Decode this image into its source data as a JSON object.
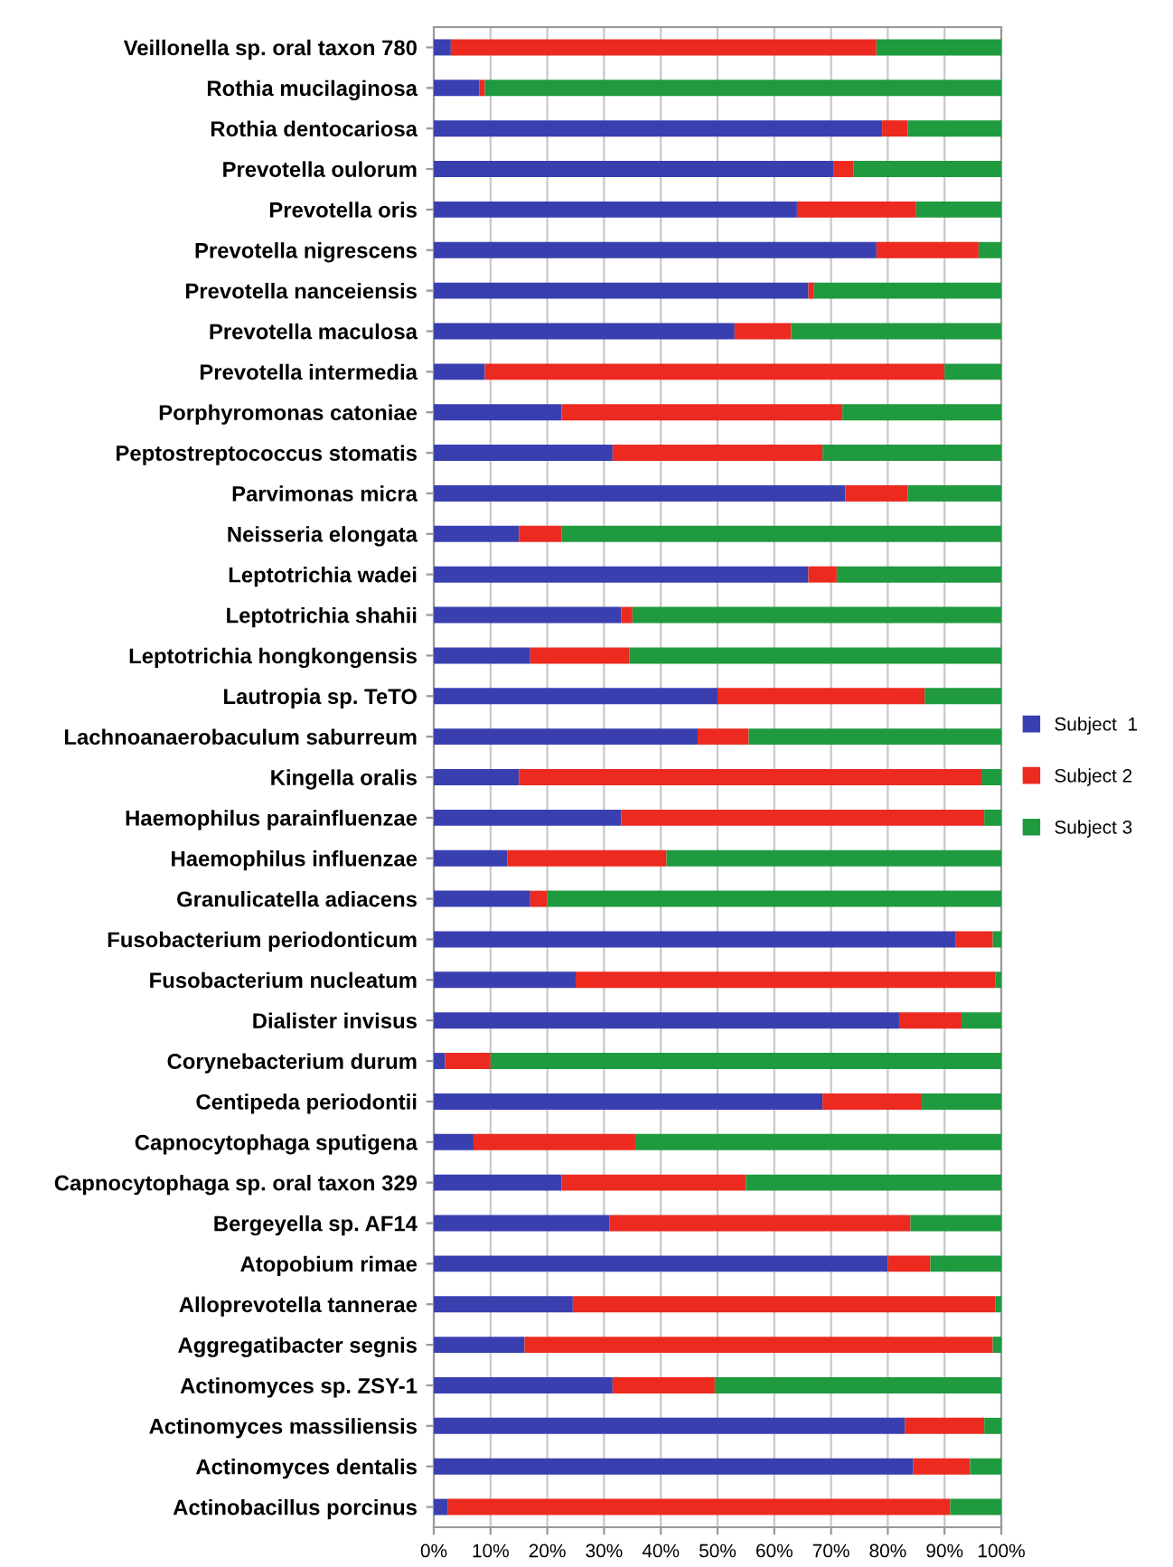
{
  "chart_data": {
    "type": "bar",
    "orientation": "horizontal",
    "stacked": true,
    "categories": [
      "Veillonella sp. oral taxon 780",
      "Rothia mucilaginosa",
      "Rothia dentocariosa",
      "Prevotella oulorum",
      "Prevotella oris",
      "Prevotella nigrescens",
      "Prevotella nanceiensis",
      "Prevotella maculosa",
      "Prevotella intermedia",
      "Porphyromonas catoniae",
      "Peptostreptococcus stomatis",
      "Parvimonas micra",
      "Neisseria elongata",
      "Leptotrichia wadei",
      "Leptotrichia shahii",
      "Leptotrichia hongkongensis",
      "Lautropia sp. TeTO",
      "Lachnoanaerobaculum saburreum",
      "Kingella oralis",
      "Haemophilus parainfluenzae",
      "Haemophilus influenzae",
      "Granulicatella adiacens",
      "Fusobacterium periodonticum",
      "Fusobacterium nucleatum",
      "Dialister invisus",
      "Corynebacterium durum",
      "Centipeda periodontii",
      "Capnocytophaga sputigena",
      "Capnocytophaga sp. oral taxon 329",
      "Bergeyella sp. AF14",
      "Atopobium rimae",
      "Alloprevotella tannerae",
      "Aggregatibacter segnis",
      "Actinomyces sp. ZSY-1",
      "Actinomyces massiliensis",
      "Actinomyces dentalis",
      "Actinobacillus porcinus"
    ],
    "series": [
      {
        "name": "Subject  1",
        "color": "#3a3fb0",
        "values": [
          3,
          8,
          79,
          70.5,
          64,
          78,
          66,
          53,
          9,
          22.5,
          31.5,
          72.5,
          15,
          66,
          33,
          17,
          50,
          46.5,
          15,
          33,
          13,
          17,
          92,
          25,
          82,
          2,
          68.5,
          7,
          22.5,
          31,
          80,
          24.5,
          16,
          31.5,
          83,
          84.5,
          2.5
        ]
      },
      {
        "name": "Subject 2",
        "color": "#ec2a20",
        "values": [
          75,
          1,
          4.5,
          3.5,
          21,
          18,
          1,
          10,
          81,
          49.5,
          37,
          11,
          7.5,
          5,
          2,
          17.5,
          36.5,
          9,
          81.5,
          64,
          28,
          3,
          6.5,
          74,
          11,
          8,
          17.5,
          28.5,
          32.5,
          53,
          7.5,
          74.5,
          82.5,
          18,
          14,
          10,
          88.5
        ]
      },
      {
        "name": "Subject 3",
        "color": "#1f9a3e",
        "values": [
          22,
          91,
          16.5,
          26,
          15,
          4,
          33,
          37,
          10,
          28,
          31.5,
          16.5,
          77.5,
          29,
          65,
          65.5,
          13.5,
          44.5,
          3.5,
          3,
          59,
          80,
          1.5,
          1,
          7,
          90,
          14,
          64.5,
          45,
          16,
          12.5,
          1,
          1.5,
          50.5,
          3,
          5.5,
          9
        ]
      }
    ],
    "xlim": [
      0,
      100
    ],
    "xticks": [
      {
        "value": 0,
        "label": "0%"
      },
      {
        "value": 10,
        "label": "10%"
      },
      {
        "value": 20,
        "label": "20%"
      },
      {
        "value": 30,
        "label": "30%"
      },
      {
        "value": 40,
        "label": "40%"
      },
      {
        "value": 50,
        "label": "50%"
      },
      {
        "value": 60,
        "label": "60%"
      },
      {
        "value": 70,
        "label": "70%"
      },
      {
        "value": 80,
        "label": "80%"
      },
      {
        "value": 90,
        "label": "90%"
      },
      {
        "value": 100,
        "label": "100%"
      }
    ],
    "grid": "x",
    "legend": "right"
  }
}
